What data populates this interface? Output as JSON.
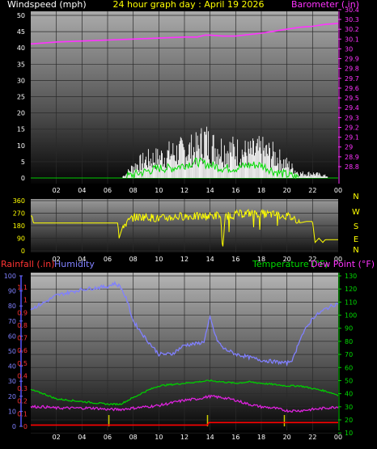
{
  "chart_data": [
    {
      "type": "line",
      "panel": "wind-barometer",
      "title": "24 hour graph day : April 19 2026",
      "left_label": "Windspeed (mph)",
      "right_label": "Barometer (.in)",
      "left_ticks": [
        "50",
        "45",
        "40",
        "35",
        "30",
        "25",
        "20",
        "15",
        "10",
        "5",
        "0"
      ],
      "right_ticks": [
        "30.4",
        "30.3",
        "30.2",
        "30.1",
        "30",
        "29.9",
        "29.8",
        "29.7",
        "29.6",
        "29.5",
        "29.4",
        "29.3",
        "29.2",
        "29.1",
        "29",
        "28.9",
        "28.8"
      ],
      "x_ticks": [
        "02",
        "04",
        "06",
        "08",
        "10",
        "12",
        "14",
        "16",
        "18",
        "20",
        "22",
        "00"
      ],
      "ylim_left": [
        0,
        50
      ],
      "ylim_right": [
        28.75,
        30.4
      ],
      "xlim": [
        0,
        24
      ],
      "colors": {
        "gust": "#ffffff",
        "average": "#00dd00",
        "barometer": "#ff33ff"
      },
      "barometer": {
        "x": [
          0,
          2,
          4,
          6,
          8,
          10,
          12,
          13,
          13.6,
          14,
          15,
          16,
          18,
          19,
          20,
          21,
          22,
          23,
          24
        ],
        "y": [
          30.05,
          30.07,
          30.08,
          30.09,
          30.1,
          30.11,
          30.12,
          30.12,
          30.14,
          30.14,
          30.13,
          30.13,
          30.16,
          30.18,
          30.2,
          30.22,
          30.23,
          30.25,
          30.26
        ]
      },
      "gust_envelope": {
        "x": [
          0,
          7,
          7.5,
          8,
          9,
          10,
          11,
          12,
          13,
          13.6,
          14,
          15,
          16,
          17,
          18,
          19,
          20,
          21,
          22,
          23,
          24
        ],
        "y": [
          0,
          0,
          2,
          5,
          8,
          9,
          11,
          12,
          13,
          17,
          14,
          13,
          12,
          11,
          12,
          10,
          6,
          2,
          2,
          1,
          0
        ]
      },
      "avg_envelope": {
        "x": [
          0,
          7,
          8,
          9,
          10,
          11,
          12,
          13,
          14,
          15,
          16,
          17,
          18,
          19,
          20,
          21,
          24
        ],
        "y": [
          0,
          0,
          1,
          2,
          3,
          3,
          4,
          5,
          4,
          3,
          3,
          4,
          4,
          2,
          1,
          0,
          0
        ]
      }
    },
    {
      "type": "line",
      "panel": "wind-direction",
      "left_ticks": [
        "360",
        "270",
        "180",
        "90",
        "0"
      ],
      "right_labels": [
        "N",
        "W",
        "S",
        "E",
        "N"
      ],
      "x_ticks": [
        "02",
        "04",
        "06",
        "08",
        "10",
        "12",
        "14",
        "16",
        "18",
        "20",
        "22",
        "00"
      ],
      "ylim": [
        0,
        360
      ],
      "xlim": [
        0,
        24
      ],
      "color": "#ffff00",
      "series": {
        "x": [
          0,
          0.1,
          0.2,
          6.8,
          6.9,
          7.2,
          7.5,
          8,
          9,
          10,
          11,
          12,
          13,
          14,
          14.8,
          15,
          15.2,
          16,
          17,
          18,
          19,
          20,
          20.9,
          21,
          21.5,
          22,
          22.2,
          22.5,
          22.8,
          23,
          24
        ],
        "y": [
          250,
          250,
          200,
          200,
          90,
          180,
          200,
          240,
          245,
          230,
          240,
          250,
          245,
          250,
          255,
          10,
          250,
          260,
          270,
          265,
          260,
          250,
          220,
          200,
          210,
          210,
          60,
          90,
          60,
          80,
          80
        ]
      }
    },
    {
      "type": "line",
      "panel": "temperature-humidity-rain",
      "labels": {
        "rain": "Rainfall (.in)",
        "humidity": "Humidity",
        "temperature": "Temperature (°F)",
        "dew": "Dew Point (°F)"
      },
      "humidity_ticks": [
        "100",
        "90",
        "80",
        "70",
        "60",
        "50",
        "40",
        "30",
        "20",
        "10",
        "0"
      ],
      "rain_ticks": [
        "1.1",
        "1",
        "0.9",
        "0.8",
        "0.7",
        "0.6",
        "0.5",
        "0.4",
        "0.3",
        "0.2",
        "0.1",
        "0"
      ],
      "temp_ticks": [
        "130",
        "120",
        "110",
        "100",
        "90",
        "80",
        "70",
        "60",
        "50",
        "40",
        "30",
        "20",
        "10"
      ],
      "x_ticks": [
        "02",
        "04",
        "06",
        "08",
        "10",
        "12",
        "14",
        "16",
        "18",
        "20",
        "22",
        "00"
      ],
      "xlim": [
        0,
        24
      ],
      "colors": {
        "humidity": "#8080ff",
        "temperature": "#00cc00",
        "dew": "#dd22dd",
        "rain": "#ff0000",
        "rain_rate": "#cccc00"
      },
      "humidity": {
        "x": [
          0,
          1,
          2,
          3,
          4,
          5,
          6,
          6.5,
          7,
          7.5,
          8,
          9,
          10,
          11,
          12,
          13,
          13.5,
          14,
          14.5,
          15,
          15.5,
          16,
          17,
          18,
          19,
          20,
          20.5,
          21,
          22,
          23,
          24
        ],
        "y": [
          78,
          82,
          87,
          89,
          91,
          92,
          93,
          95,
          93,
          84,
          70,
          58,
          48,
          48,
          54,
          55,
          56,
          72,
          58,
          52,
          50,
          48,
          46,
          44,
          43,
          42,
          45,
          58,
          72,
          78,
          82
        ]
      },
      "temperature": {
        "x": [
          0,
          1,
          2,
          3,
          4,
          5,
          6,
          7,
          8,
          9,
          10,
          11,
          12,
          13,
          14,
          15,
          16,
          17,
          18,
          19,
          20,
          21,
          22,
          23,
          24
        ],
        "y": [
          43,
          40,
          36,
          35,
          34,
          33,
          32,
          32,
          37,
          42,
          46,
          47,
          48,
          49,
          50,
          49,
          48,
          49,
          48,
          47,
          46,
          46,
          44,
          42,
          39
        ]
      },
      "dew": {
        "x": [
          0,
          1,
          2,
          3,
          4,
          5,
          6,
          7,
          8,
          9,
          10,
          11,
          12,
          13,
          14,
          15,
          16,
          17,
          18,
          19,
          20,
          21,
          22,
          23,
          24
        ],
        "y": [
          30,
          30,
          29,
          29,
          29,
          29,
          28,
          28,
          29,
          30,
          31,
          33,
          35,
          36,
          38,
          37,
          35,
          32,
          30,
          29,
          27,
          27,
          28,
          29,
          30
        ]
      },
      "rain_daily_in": {
        "x": [
          0,
          13.8,
          13.9,
          24
        ],
        "y": [
          0.01,
          0.01,
          0.03,
          0.03
        ]
      },
      "rain_rate_events": [
        6.1,
        13.8,
        19.8
      ],
      "ylim_temp": [
        15,
        130
      ],
      "ylim_humidity": [
        0,
        100
      ],
      "ylim_rain": [
        0,
        1.15
      ]
    }
  ]
}
